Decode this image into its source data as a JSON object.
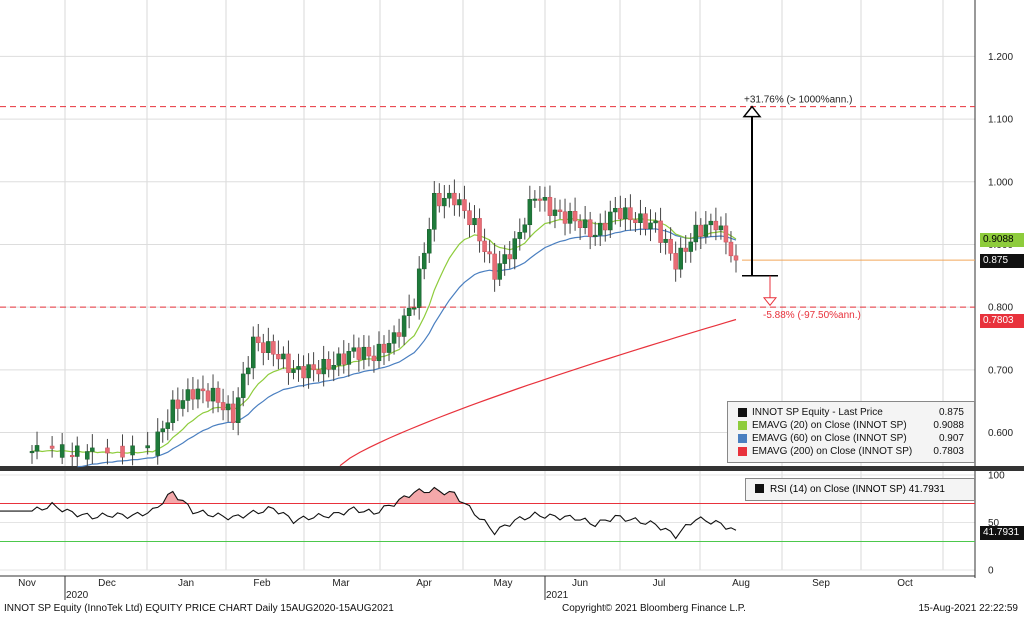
{
  "chart_data": [
    {
      "type": "candlestick",
      "title": "INNOT SP Equity (InnoTek Ltd) EQUITY PRICE CHART",
      "x_axis": {
        "months": [
          "Nov",
          "Dec",
          "Jan",
          "Feb",
          "Mar",
          "Apr",
          "May",
          "Jun",
          "Jul",
          "Aug",
          "Sep",
          "Oct"
        ],
        "years": [
          "2020",
          "2021"
        ]
      },
      "y_axis": {
        "ticks": [
          "0.600",
          "0.700",
          "0.800",
          "0.900",
          "1.000",
          "1.100",
          "1.200"
        ],
        "ylim": [
          0.545,
          1.29
        ]
      },
      "weekly_close": [
        0.57,
        0.572,
        0.567,
        0.568,
        0.566,
        0.568,
        0.575,
        0.64,
        0.665,
        0.66,
        0.625,
        0.745,
        0.73,
        0.698,
        0.7,
        0.71,
        0.73,
        0.722,
        0.75,
        0.81,
        0.97,
        0.975,
        0.93,
        0.855,
        0.9,
        0.98,
        0.95,
        0.94,
        0.915,
        0.955,
        0.94,
        0.93,
        0.87,
        0.92,
        0.935,
        0.875
      ],
      "series": [
        {
          "name": "INNOT SP Equity - Last Price",
          "value": "0.875",
          "color": "#111111"
        },
        {
          "name": "EMAVG (20)  on Close (INNOT SP)",
          "value": "0.9088",
          "color": "#8ecc3c"
        },
        {
          "name": "EMAVG (60)  on Close (INNOT SP)",
          "value": "0.907",
          "color": "#4a7fc0"
        },
        {
          "name": "EMAVG (200)  on Close (INNOT SP)",
          "value": "0.7803",
          "color": "#e8323c"
        }
      ],
      "price_tags": [
        {
          "label": "0.9088",
          "value": 0.9088,
          "bg": "#8ecc3c",
          "fg": "#000000"
        },
        {
          "label": "0.875",
          "value": 0.875,
          "bg": "#111111",
          "fg": "#ffffff"
        },
        {
          "label": "0.7803",
          "value": 0.7803,
          "bg": "#e8323c",
          "fg": "#ffffff"
        }
      ],
      "levels": [
        1.12,
        0.8,
        0.875
      ],
      "annotations": {
        "upper": "+31.76% (> 1000%ann.)",
        "lower": "-5.88% (-97.50%ann.)"
      }
    },
    {
      "type": "line",
      "name": "RSI (14)  on Close (INNOT SP)",
      "value": "41.7931",
      "y_axis": {
        "ticks": [
          "0",
          "50",
          "100"
        ],
        "ylim": [
          0,
          100
        ]
      },
      "levels": [
        70,
        30
      ],
      "weekly": [
        62,
        68,
        60,
        56,
        58,
        57,
        62,
        82,
        62,
        58,
        55,
        60,
        65,
        52,
        56,
        58,
        64,
        60,
        70,
        82,
        84,
        80,
        60,
        40,
        52,
        58,
        56,
        55,
        48,
        56,
        52,
        48,
        36,
        54,
        50,
        41.8
      ]
    }
  ],
  "labels": {
    "footer_left": "INNOT SP Equity (InnoTek Ltd) EQUITY PRICE CHART  Daily 15AUG2020-15AUG2021",
    "footer_copyright": "Copyright© 2021 Bloomberg Finance L.P.",
    "footer_right": "15-Aug-2021 22:22:59",
    "legend_values": [
      "0.875",
      "0.9088",
      "0.907",
      "0.7803"
    ],
    "rsi_tag": "41.7931"
  }
}
